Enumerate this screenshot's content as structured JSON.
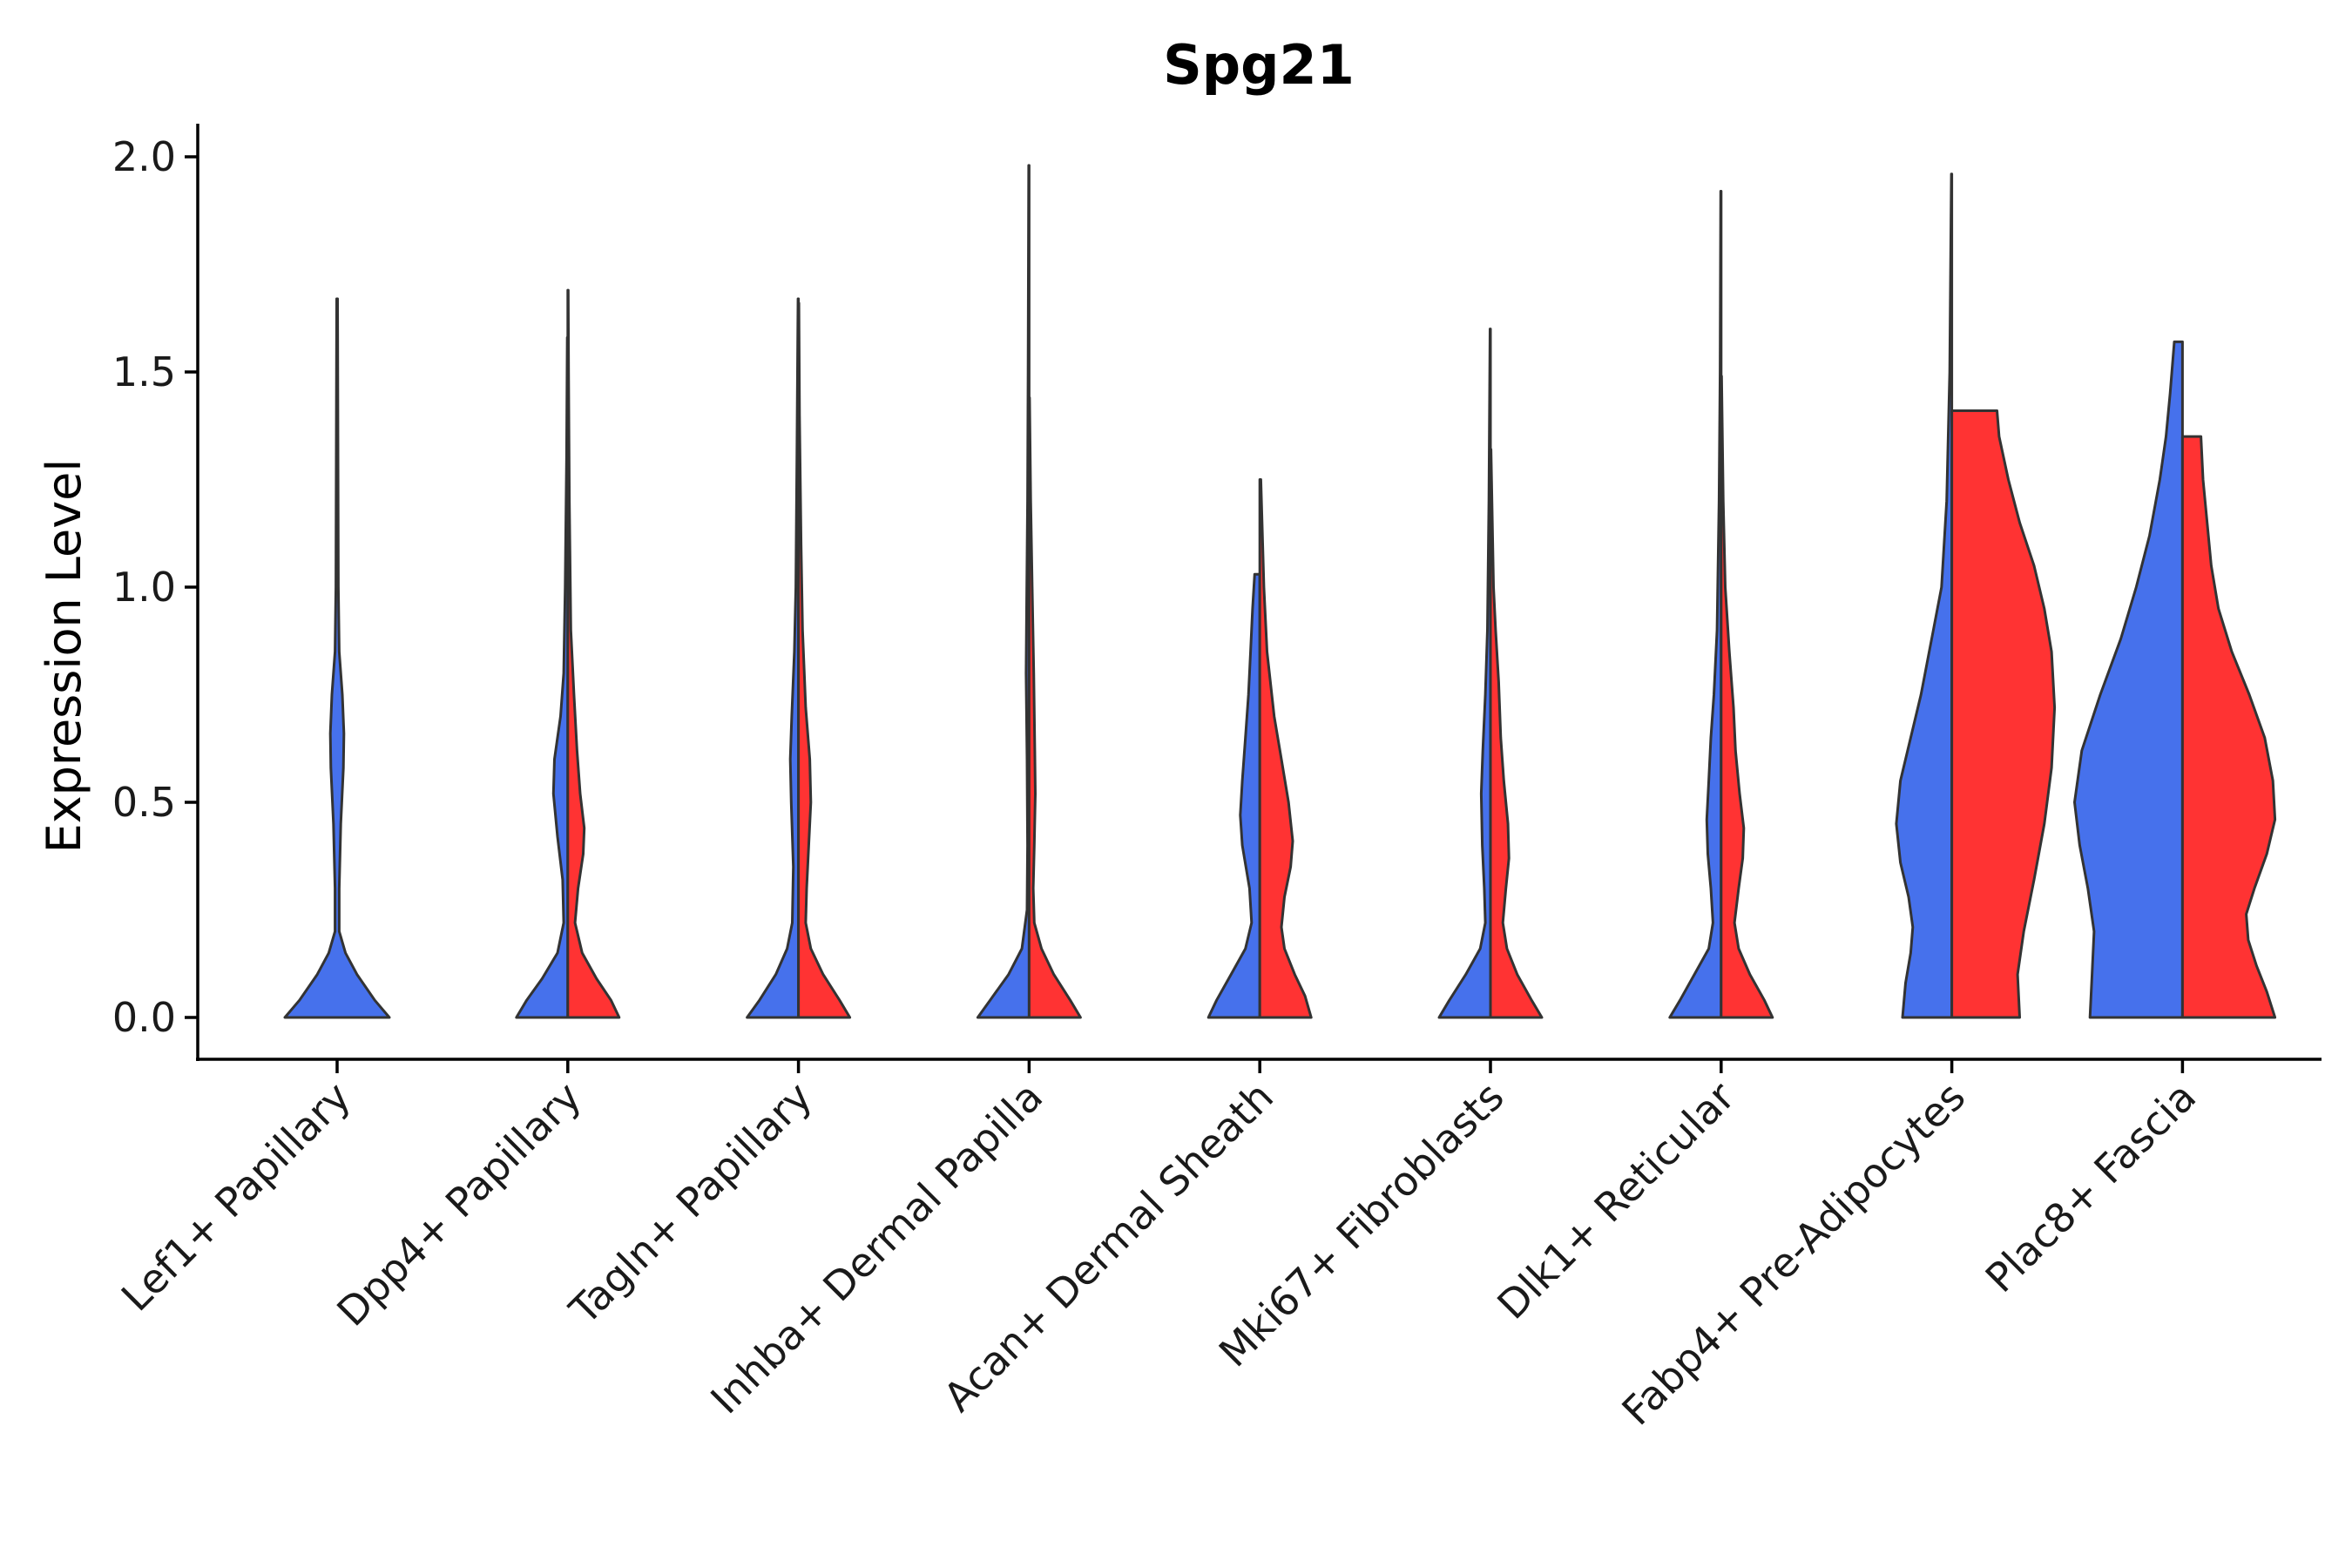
{
  "chart_data": {
    "type": "violin",
    "title": "Spg21",
    "xlabel": "",
    "ylabel": "Expression Level",
    "ylim": [
      -0.1,
      2.05
    ],
    "yticks": [
      0.0,
      0.5,
      1.0,
      1.5,
      2.0
    ],
    "ytick_labels": [
      "0.0",
      "0.5",
      "1.0",
      "1.5",
      "2.0"
    ],
    "split_colors": {
      "group_1": "#4671EC",
      "group_2": "#FF3333"
    },
    "categories": [
      "Lef1+ Papillary",
      "Dpp4+ Papillary",
      "Tagln+ Papillary",
      "Inhba+ Dermal Papilla",
      "Acan+ Dermal Sheath",
      "Mki67+ Fibroblasts",
      "Dlk1+ Reticular",
      "Fabp4+ Pre-Adipocytes",
      "Plac8+ Fascia"
    ],
    "violins": [
      {
        "category": "Lef1+ Papillary",
        "group": "group_1",
        "color": "#4671EC",
        "side": "full",
        "max": 1.67,
        "profile": [
          [
            0.0,
            0.5
          ],
          [
            0.04,
            0.36
          ],
          [
            0.1,
            0.19
          ],
          [
            0.15,
            0.08
          ],
          [
            0.2,
            0.02
          ],
          [
            0.3,
            0.02
          ],
          [
            0.45,
            0.035
          ],
          [
            0.58,
            0.06
          ],
          [
            0.66,
            0.065
          ],
          [
            0.75,
            0.05
          ],
          [
            0.85,
            0.02
          ],
          [
            1.0,
            0.012
          ],
          [
            1.3,
            0.008
          ],
          [
            1.67,
            0.004
          ]
        ]
      },
      {
        "category": "Dpp4+ Papillary",
        "group": "group_1",
        "color": "#4671EC",
        "side": "left",
        "max": 1.58,
        "profile": [
          [
            0.0,
            0.5
          ],
          [
            0.04,
            0.4
          ],
          [
            0.09,
            0.25
          ],
          [
            0.15,
            0.1
          ],
          [
            0.22,
            0.04
          ],
          [
            0.32,
            0.05
          ],
          [
            0.42,
            0.1
          ],
          [
            0.52,
            0.14
          ],
          [
            0.6,
            0.13
          ],
          [
            0.7,
            0.07
          ],
          [
            0.8,
            0.04
          ],
          [
            1.0,
            0.025
          ],
          [
            1.3,
            0.012
          ],
          [
            1.58,
            0.005
          ]
        ]
      },
      {
        "category": "Dpp4+ Papillary",
        "group": "group_2",
        "color": "#FF3333",
        "side": "right",
        "max": 1.69,
        "profile": [
          [
            0.0,
            0.5
          ],
          [
            0.04,
            0.42
          ],
          [
            0.09,
            0.28
          ],
          [
            0.15,
            0.14
          ],
          [
            0.22,
            0.07
          ],
          [
            0.3,
            0.1
          ],
          [
            0.38,
            0.15
          ],
          [
            0.44,
            0.16
          ],
          [
            0.52,
            0.12
          ],
          [
            0.62,
            0.09
          ],
          [
            0.75,
            0.06
          ],
          [
            0.9,
            0.03
          ],
          [
            1.2,
            0.015
          ],
          [
            1.5,
            0.008
          ],
          [
            1.69,
            0.004
          ]
        ]
      },
      {
        "category": "Tagln+ Papillary",
        "group": "group_1",
        "color": "#4671EC",
        "side": "left",
        "max": 1.67,
        "profile": [
          [
            0.0,
            0.5
          ],
          [
            0.04,
            0.38
          ],
          [
            0.1,
            0.22
          ],
          [
            0.16,
            0.11
          ],
          [
            0.22,
            0.06
          ],
          [
            0.35,
            0.05
          ],
          [
            0.5,
            0.07
          ],
          [
            0.6,
            0.08
          ],
          [
            0.7,
            0.065
          ],
          [
            0.85,
            0.04
          ],
          [
            1.0,
            0.025
          ],
          [
            1.3,
            0.015
          ],
          [
            1.67,
            0.004
          ]
        ]
      },
      {
        "category": "Tagln+ Papillary",
        "group": "group_2",
        "color": "#FF3333",
        "side": "right",
        "max": 1.66,
        "profile": [
          [
            0.0,
            0.5
          ],
          [
            0.04,
            0.4
          ],
          [
            0.1,
            0.24
          ],
          [
            0.16,
            0.12
          ],
          [
            0.22,
            0.07
          ],
          [
            0.3,
            0.08
          ],
          [
            0.4,
            0.1
          ],
          [
            0.5,
            0.12
          ],
          [
            0.6,
            0.11
          ],
          [
            0.72,
            0.07
          ],
          [
            0.9,
            0.04
          ],
          [
            1.1,
            0.025
          ],
          [
            1.4,
            0.01
          ],
          [
            1.66,
            0.004
          ]
        ]
      },
      {
        "category": "Inhba+ Dermal Papilla",
        "group": "group_1",
        "color": "#4671EC",
        "side": "left",
        "max": 1.98,
        "profile": [
          [
            0.0,
            0.5
          ],
          [
            0.04,
            0.38
          ],
          [
            0.1,
            0.2
          ],
          [
            0.16,
            0.07
          ],
          [
            0.25,
            0.02
          ],
          [
            0.4,
            0.015
          ],
          [
            0.6,
            0.02
          ],
          [
            0.8,
            0.03
          ],
          [
            0.95,
            0.025
          ],
          [
            1.2,
            0.015
          ],
          [
            1.5,
            0.01
          ],
          [
            1.98,
            0.004
          ]
        ]
      },
      {
        "category": "Inhba+ Dermal Papilla",
        "group": "group_2",
        "color": "#FF3333",
        "side": "right",
        "max": 1.44,
        "profile": [
          [
            0.0,
            0.5
          ],
          [
            0.04,
            0.4
          ],
          [
            0.1,
            0.24
          ],
          [
            0.16,
            0.12
          ],
          [
            0.22,
            0.05
          ],
          [
            0.3,
            0.04
          ],
          [
            0.4,
            0.05
          ],
          [
            0.52,
            0.06
          ],
          [
            0.62,
            0.055
          ],
          [
            0.8,
            0.045
          ],
          [
            1.0,
            0.03
          ],
          [
            1.2,
            0.015
          ],
          [
            1.44,
            0.004
          ]
        ]
      },
      {
        "category": "Acan+ Dermal Sheath",
        "group": "group_1",
        "color": "#4671EC",
        "side": "left",
        "max": 1.03,
        "profile": [
          [
            0.0,
            0.5
          ],
          [
            0.04,
            0.42
          ],
          [
            0.1,
            0.28
          ],
          [
            0.16,
            0.14
          ],
          [
            0.22,
            0.08
          ],
          [
            0.3,
            0.1
          ],
          [
            0.4,
            0.17
          ],
          [
            0.47,
            0.19
          ],
          [
            0.55,
            0.17
          ],
          [
            0.65,
            0.14
          ],
          [
            0.75,
            0.11
          ],
          [
            0.85,
            0.09
          ],
          [
            0.95,
            0.07
          ],
          [
            1.03,
            0.05
          ]
        ]
      },
      {
        "category": "Acan+ Dermal Sheath",
        "group": "group_2",
        "color": "#FF3333",
        "side": "right",
        "max": 1.25,
        "profile": [
          [
            0.0,
            0.5
          ],
          [
            0.05,
            0.44
          ],
          [
            0.1,
            0.34
          ],
          [
            0.16,
            0.24
          ],
          [
            0.21,
            0.21
          ],
          [
            0.28,
            0.24
          ],
          [
            0.35,
            0.3
          ],
          [
            0.41,
            0.32
          ],
          [
            0.5,
            0.28
          ],
          [
            0.6,
            0.21
          ],
          [
            0.7,
            0.14
          ],
          [
            0.85,
            0.07
          ],
          [
            1.0,
            0.04
          ],
          [
            1.25,
            0.01
          ]
        ]
      },
      {
        "category": "Mki67+ Fibroblasts",
        "group": "group_1",
        "color": "#4671EC",
        "side": "left",
        "max": 1.6,
        "profile": [
          [
            0.0,
            0.5
          ],
          [
            0.04,
            0.4
          ],
          [
            0.1,
            0.24
          ],
          [
            0.16,
            0.1
          ],
          [
            0.22,
            0.05
          ],
          [
            0.3,
            0.06
          ],
          [
            0.4,
            0.08
          ],
          [
            0.52,
            0.09
          ],
          [
            0.62,
            0.075
          ],
          [
            0.75,
            0.05
          ],
          [
            0.9,
            0.03
          ],
          [
            1.2,
            0.015
          ],
          [
            1.6,
            0.004
          ]
        ]
      },
      {
        "category": "Mki67+ Fibroblasts",
        "group": "group_2",
        "color": "#FF3333",
        "side": "right",
        "max": 1.32,
        "profile": [
          [
            0.0,
            0.5
          ],
          [
            0.04,
            0.4
          ],
          [
            0.1,
            0.26
          ],
          [
            0.16,
            0.16
          ],
          [
            0.22,
            0.12
          ],
          [
            0.3,
            0.15
          ],
          [
            0.37,
            0.18
          ],
          [
            0.45,
            0.17
          ],
          [
            0.55,
            0.13
          ],
          [
            0.65,
            0.1
          ],
          [
            0.78,
            0.08
          ],
          [
            0.9,
            0.05
          ],
          [
            1.0,
            0.03
          ],
          [
            1.32,
            0.005
          ]
        ]
      },
      {
        "category": "Dlk1+ Reticular",
        "group": "group_1",
        "color": "#4671EC",
        "side": "left",
        "max": 1.92,
        "profile": [
          [
            0.0,
            0.5
          ],
          [
            0.04,
            0.4
          ],
          [
            0.1,
            0.26
          ],
          [
            0.16,
            0.12
          ],
          [
            0.22,
            0.08
          ],
          [
            0.3,
            0.1
          ],
          [
            0.38,
            0.13
          ],
          [
            0.46,
            0.14
          ],
          [
            0.55,
            0.12
          ],
          [
            0.65,
            0.1
          ],
          [
            0.75,
            0.07
          ],
          [
            0.9,
            0.04
          ],
          [
            1.2,
            0.02
          ],
          [
            1.5,
            0.01
          ],
          [
            1.92,
            0.004
          ]
        ]
      },
      {
        "category": "Dlk1+ Reticular",
        "group": "group_2",
        "color": "#FF3333",
        "side": "right",
        "max": 1.49,
        "profile": [
          [
            0.0,
            0.5
          ],
          [
            0.04,
            0.42
          ],
          [
            0.1,
            0.28
          ],
          [
            0.16,
            0.17
          ],
          [
            0.22,
            0.13
          ],
          [
            0.3,
            0.17
          ],
          [
            0.37,
            0.21
          ],
          [
            0.44,
            0.22
          ],
          [
            0.52,
            0.18
          ],
          [
            0.62,
            0.14
          ],
          [
            0.72,
            0.12
          ],
          [
            0.85,
            0.08
          ],
          [
            1.0,
            0.04
          ],
          [
            1.2,
            0.02
          ],
          [
            1.49,
            0.004
          ]
        ]
      },
      {
        "category": "Fabp4+ Pre-Adipocytes",
        "group": "group_1",
        "color": "#4671EC",
        "side": "left",
        "max": 1.96,
        "profile": [
          [
            0.0,
            0.48
          ],
          [
            0.08,
            0.45
          ],
          [
            0.15,
            0.4
          ],
          [
            0.21,
            0.38
          ],
          [
            0.28,
            0.42
          ],
          [
            0.36,
            0.5
          ],
          [
            0.45,
            0.54
          ],
          [
            0.55,
            0.5
          ],
          [
            0.65,
            0.4
          ],
          [
            0.75,
            0.3
          ],
          [
            0.9,
            0.18
          ],
          [
            1.0,
            0.1
          ],
          [
            1.2,
            0.05
          ],
          [
            1.5,
            0.02
          ],
          [
            1.96,
            0.004
          ]
        ]
      },
      {
        "category": "Fabp4+ Pre-Adipocytes",
        "group": "group_2",
        "color": "#FF3333",
        "side": "right",
        "max": 1.41,
        "profile": [
          [
            0.0,
            0.66
          ],
          [
            0.1,
            0.64
          ],
          [
            0.2,
            0.7
          ],
          [
            0.32,
            0.8
          ],
          [
            0.45,
            0.9
          ],
          [
            0.58,
            0.97
          ],
          [
            0.72,
            1.0
          ],
          [
            0.85,
            0.97
          ],
          [
            0.95,
            0.9
          ],
          [
            1.05,
            0.8
          ],
          [
            1.15,
            0.66
          ],
          [
            1.25,
            0.55
          ],
          [
            1.35,
            0.46
          ],
          [
            1.41,
            0.44
          ]
        ]
      },
      {
        "category": "Plac8+ Fascia",
        "group": "group_1",
        "color": "#4671EC",
        "side": "left",
        "max": 1.57,
        "profile": [
          [
            0.0,
            0.9
          ],
          [
            0.1,
            0.88
          ],
          [
            0.2,
            0.86
          ],
          [
            0.3,
            0.92
          ],
          [
            0.4,
            1.0
          ],
          [
            0.5,
            1.05
          ],
          [
            0.62,
            0.98
          ],
          [
            0.75,
            0.8
          ],
          [
            0.88,
            0.6
          ],
          [
            1.0,
            0.45
          ],
          [
            1.12,
            0.32
          ],
          [
            1.25,
            0.22
          ],
          [
            1.35,
            0.16
          ],
          [
            1.45,
            0.12
          ],
          [
            1.57,
            0.08
          ]
        ]
      },
      {
        "category": "Plac8+ Fascia",
        "group": "group_2",
        "color": "#FF3333",
        "side": "right",
        "max": 1.35,
        "profile": [
          [
            0.0,
            0.9
          ],
          [
            0.06,
            0.82
          ],
          [
            0.12,
            0.72
          ],
          [
            0.18,
            0.64
          ],
          [
            0.24,
            0.62
          ],
          [
            0.3,
            0.7
          ],
          [
            0.38,
            0.82
          ],
          [
            0.46,
            0.9
          ],
          [
            0.55,
            0.88
          ],
          [
            0.65,
            0.8
          ],
          [
            0.75,
            0.65
          ],
          [
            0.85,
            0.48
          ],
          [
            0.95,
            0.35
          ],
          [
            1.05,
            0.28
          ],
          [
            1.15,
            0.24
          ],
          [
            1.25,
            0.2
          ],
          [
            1.35,
            0.18
          ]
        ]
      }
    ]
  }
}
